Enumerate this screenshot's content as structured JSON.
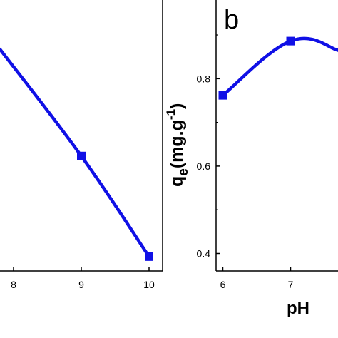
{
  "chart_data": [
    {
      "type": "line",
      "panel": "a",
      "panel_label": "",
      "xlabel": "",
      "ylabel": "",
      "xlim": [
        7.8,
        10.2
      ],
      "ylim": [
        0.32,
        0.98
      ],
      "x_ticks": [
        8,
        9,
        10
      ],
      "x_tick_labels": [
        "8",
        "9",
        "10"
      ],
      "series": [
        {
          "color": "#1010e6",
          "marker": "square",
          "x": [
            7.8,
            9,
            10
          ],
          "y": [
            0.86,
            0.6,
            0.355
          ]
        }
      ]
    },
    {
      "type": "line",
      "panel": "b",
      "panel_label": "b",
      "xlabel": "pH",
      "ylabel_main": "q",
      "ylabel_sub": "e",
      "ylabel_units": "(mg.g",
      "ylabel_sup": "-1",
      "ylabel_close": ")",
      "xlim": [
        5.9,
        7.7
      ],
      "ylim": [
        0.36,
        0.98
      ],
      "x_ticks": [
        6,
        7
      ],
      "x_tick_labels": [
        "6",
        "7"
      ],
      "y_ticks": [
        0.4,
        0.6,
        0.8
      ],
      "y_tick_labels": [
        "0.4",
        "0.6",
        "0.8"
      ],
      "series": [
        {
          "color": "#1010e6",
          "marker": "square",
          "x": [
            6,
            7,
            7.7
          ],
          "y": [
            0.762,
            0.886,
            0.865
          ]
        }
      ]
    }
  ],
  "colors": {
    "line": "#1010e6",
    "axis": "#000000"
  }
}
